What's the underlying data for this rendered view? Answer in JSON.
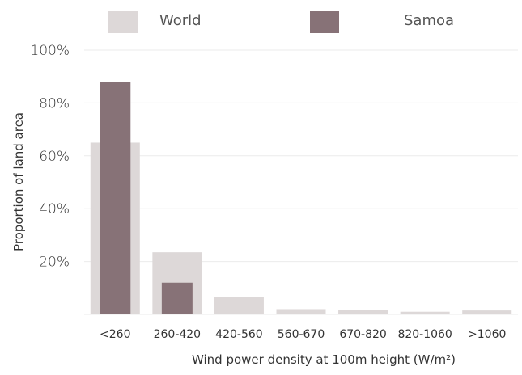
{
  "chart_data": {
    "type": "bar",
    "categories": [
      "<260",
      "260-420",
      "420-560",
      "560-670",
      "670-820",
      "820-1060",
      ">1060"
    ],
    "series": [
      {
        "name": "World",
        "color": "#ddd8d8",
        "values": [
          65,
          23.5,
          6.5,
          2,
          1.8,
          1,
          1.5
        ]
      },
      {
        "name": "Samoa",
        "color": "#877277",
        "values": [
          88,
          12,
          0,
          0,
          0,
          0,
          0
        ]
      }
    ],
    "xlabel": "Wind power density at 100m height (W/m²)",
    "ylabel": "Proportion of land area",
    "ylim": [
      0,
      100
    ],
    "yticks": [
      "100%",
      "80%",
      "60%",
      "40%",
      "20%"
    ],
    "ytick_values": [
      100,
      80,
      60,
      40,
      20
    ],
    "grid": true,
    "legend_position": "top"
  }
}
